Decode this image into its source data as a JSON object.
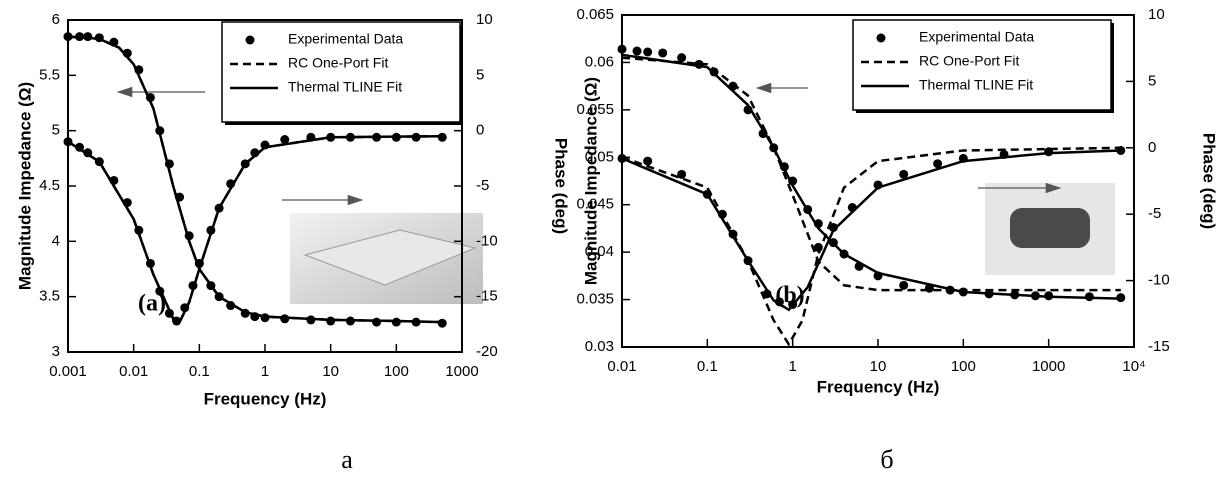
{
  "chart_data": [
    {
      "type": "line",
      "panel_label": "(a)",
      "caption": "а",
      "xlabel": "Frequency (Hz)",
      "ylabel": "Magnitude Impedance (Ω)",
      "y2label": "Phase (deg)",
      "xscale": "log",
      "xlim": [
        0.001,
        1000
      ],
      "xticks": [
        0.001,
        0.01,
        0.1,
        1,
        10,
        100,
        1000
      ],
      "ylim": [
        3,
        6
      ],
      "yticks": [
        3,
        3.5,
        4,
        4.5,
        5,
        5.5,
        6
      ],
      "y2lim": [
        -20,
        10
      ],
      "y2ticks": [
        -20,
        -15,
        -10,
        -5,
        0,
        5,
        10
      ],
      "legend": "upper right",
      "series": [
        {
          "name": "Experimental Data",
          "color": "#000000",
          "style": "markers",
          "magnitude": {
            "x": [
              0.001,
              0.0015,
              0.002,
              0.003,
              0.005,
              0.008,
              0.012,
              0.018,
              0.025,
              0.035,
              0.05,
              0.07,
              0.1,
              0.15,
              0.2,
              0.3,
              0.5,
              0.7,
              1,
              2,
              5,
              10,
              20,
              50,
              100,
              200,
              500
            ],
            "values": [
              5.85,
              5.85,
              5.85,
              5.84,
              5.8,
              5.7,
              5.55,
              5.3,
              5.0,
              4.7,
              4.4,
              4.05,
              3.8,
              3.6,
              3.5,
              3.42,
              3.35,
              3.32,
              3.31,
              3.3,
              3.29,
              3.28,
              3.28,
              3.27,
              3.27,
              3.27,
              3.26
            ]
          },
          "phase": {
            "x": [
              0.001,
              0.0015,
              0.002,
              0.003,
              0.005,
              0.008,
              0.012,
              0.018,
              0.025,
              0.035,
              0.045,
              0.06,
              0.08,
              0.1,
              0.15,
              0.2,
              0.3,
              0.5,
              0.7,
              1,
              2,
              5,
              10,
              20,
              50,
              100,
              200,
              500
            ],
            "values": [
              -1,
              -1.5,
              -2,
              -2.8,
              -4.5,
              -6.5,
              -9,
              -12,
              -14.5,
              -16.5,
              -17.2,
              -16,
              -14,
              -12,
              -9,
              -7,
              -4.8,
              -3,
              -2,
              -1.3,
              -0.8,
              -0.6,
              -0.6,
              -0.6,
              -0.6,
              -0.6,
              -0.6,
              -0.6
            ]
          }
        },
        {
          "name": "RC One-Port Fit",
          "color": "#000000",
          "style": "dashed",
          "magnitude": {
            "x": [
              0.001,
              0.003,
              0.006,
              0.01,
              0.02,
              0.04,
              0.07,
              0.1,
              0.2,
              0.5,
              1,
              10,
              100,
              500
            ],
            "values": [
              5.85,
              5.83,
              5.75,
              5.6,
              5.2,
              4.5,
              4.0,
              3.75,
              3.5,
              3.36,
              3.32,
              3.29,
              3.28,
              3.27
            ]
          },
          "phase": {
            "x": [
              0.001,
              0.003,
              0.01,
              0.02,
              0.04,
              0.05,
              0.07,
              0.1,
              0.2,
              0.5,
              1,
              10,
              500
            ],
            "values": [
              -1,
              -2.8,
              -8,
              -13,
              -17,
              -17.3,
              -15.5,
              -12.5,
              -7,
              -3,
              -1.5,
              -0.6,
              -0.5
            ]
          }
        },
        {
          "name": "Thermal TLINE Fit",
          "color": "#000000",
          "style": "solid",
          "magnitude": {
            "x": [
              0.001,
              0.003,
              0.006,
              0.01,
              0.02,
              0.04,
              0.07,
              0.1,
              0.2,
              0.5,
              1,
              10,
              100,
              500
            ],
            "values": [
              5.85,
              5.83,
              5.75,
              5.6,
              5.2,
              4.5,
              4.0,
              3.75,
              3.5,
              3.36,
              3.32,
              3.29,
              3.28,
              3.27
            ]
          },
          "phase": {
            "x": [
              0.001,
              0.003,
              0.01,
              0.02,
              0.04,
              0.05,
              0.07,
              0.1,
              0.2,
              0.5,
              1,
              10,
              500
            ],
            "values": [
              -1,
              -2.8,
              -8,
              -13,
              -17,
              -17.3,
              -15.5,
              -12.5,
              -7,
              -3,
              -1.5,
              -0.6,
              -0.5
            ]
          }
        }
      ]
    },
    {
      "type": "line",
      "panel_label": "(b)",
      "caption": "б",
      "xlabel": "Frequency (Hz)",
      "ylabel": "Magnitude Impedance (Ω)",
      "y2label": "Phase (deg)",
      "xscale": "log",
      "xlim": [
        0.01,
        10000
      ],
      "xticks": [
        0.01,
        0.1,
        1,
        10,
        100,
        1000,
        {
          "value": 10000,
          "label": "10⁴"
        }
      ],
      "ylim": [
        0.03,
        0.065
      ],
      "yticks": [
        0.03,
        0.035,
        0.04,
        0.045,
        0.05,
        0.055,
        0.06,
        0.065
      ],
      "y2lim": [
        -15,
        10
      ],
      "y2ticks": [
        -15,
        -10,
        -5,
        0,
        5,
        10
      ],
      "legend": "upper right",
      "series": [
        {
          "name": "Experimental Data",
          "color": "#000000",
          "style": "markers",
          "magnitude": {
            "x": [
              0.01,
              0.015,
              0.02,
              0.03,
              0.05,
              0.08,
              0.12,
              0.2,
              0.3,
              0.45,
              0.6,
              0.8,
              1,
              1.5,
              2,
              3,
              4,
              6,
              10,
              20,
              40,
              70,
              100,
              200,
              400,
              700,
              1000,
              3000,
              7000
            ],
            "values": [
              0.0614,
              0.0612,
              0.0611,
              0.061,
              0.0605,
              0.0598,
              0.059,
              0.0575,
              0.055,
              0.0525,
              0.051,
              0.049,
              0.0475,
              0.0445,
              0.043,
              0.041,
              0.0398,
              0.0385,
              0.0375,
              0.0365,
              0.0362,
              0.036,
              0.0358,
              0.0356,
              0.0355,
              0.0354,
              0.0354,
              0.0353,
              0.0352
            ]
          },
          "phase": {
            "x": [
              0.01,
              0.02,
              0.05,
              0.1,
              0.15,
              0.2,
              0.3,
              0.5,
              0.7,
              1,
              2,
              3,
              5,
              10,
              20,
              50,
              100,
              300,
              1000,
              7000
            ],
            "values": [
              -0.8,
              -1,
              -2,
              -3.5,
              -5,
              -6.5,
              -8.5,
              -11,
              -11.6,
              -11.8,
              -7.5,
              -6,
              -4.5,
              -2.8,
              -2,
              -1.2,
              -0.8,
              -0.5,
              -0.3,
              -0.2
            ]
          }
        },
        {
          "name": "RC One-Port Fit",
          "color": "#000000",
          "style": "dashed",
          "magnitude": {
            "x": [
              0.01,
              0.1,
              0.3,
              0.6,
              1,
              2,
              4,
              10,
              100,
              7000
            ],
            "values": [
              0.0605,
              0.0598,
              0.0565,
              0.051,
              0.046,
              0.039,
              0.0365,
              0.036,
              0.036,
              0.036
            ]
          },
          "phase": {
            "x": [
              0.01,
              0.1,
              0.3,
              0.6,
              0.9,
              1.3,
              2,
              4,
              10,
              100,
              7000
            ],
            "values": [
              -0.7,
              -3,
              -8.5,
              -13,
              -14.8,
              -13,
              -8,
              -3,
              -1,
              -0.2,
              0
            ]
          }
        },
        {
          "name": "Thermal TLINE Fit",
          "color": "#000000",
          "style": "solid",
          "magnitude": {
            "x": [
              0.01,
              0.1,
              0.3,
              0.6,
              1,
              2,
              4,
              10,
              100,
              1000,
              7000
            ],
            "values": [
              0.0608,
              0.0595,
              0.0555,
              0.051,
              0.047,
              0.0425,
              0.0398,
              0.0378,
              0.0358,
              0.0353,
              0.0351
            ]
          },
          "phase": {
            "x": [
              0.01,
              0.1,
              0.3,
              0.6,
              0.9,
              1.5,
              3,
              10,
              100,
              1000,
              7000
            ],
            "values": [
              -0.8,
              -3.5,
              -8.5,
              -11.5,
              -12.2,
              -10.5,
              -6.2,
              -3,
              -1,
              -0.4,
              -0.2
            ]
          }
        }
      ]
    }
  ]
}
